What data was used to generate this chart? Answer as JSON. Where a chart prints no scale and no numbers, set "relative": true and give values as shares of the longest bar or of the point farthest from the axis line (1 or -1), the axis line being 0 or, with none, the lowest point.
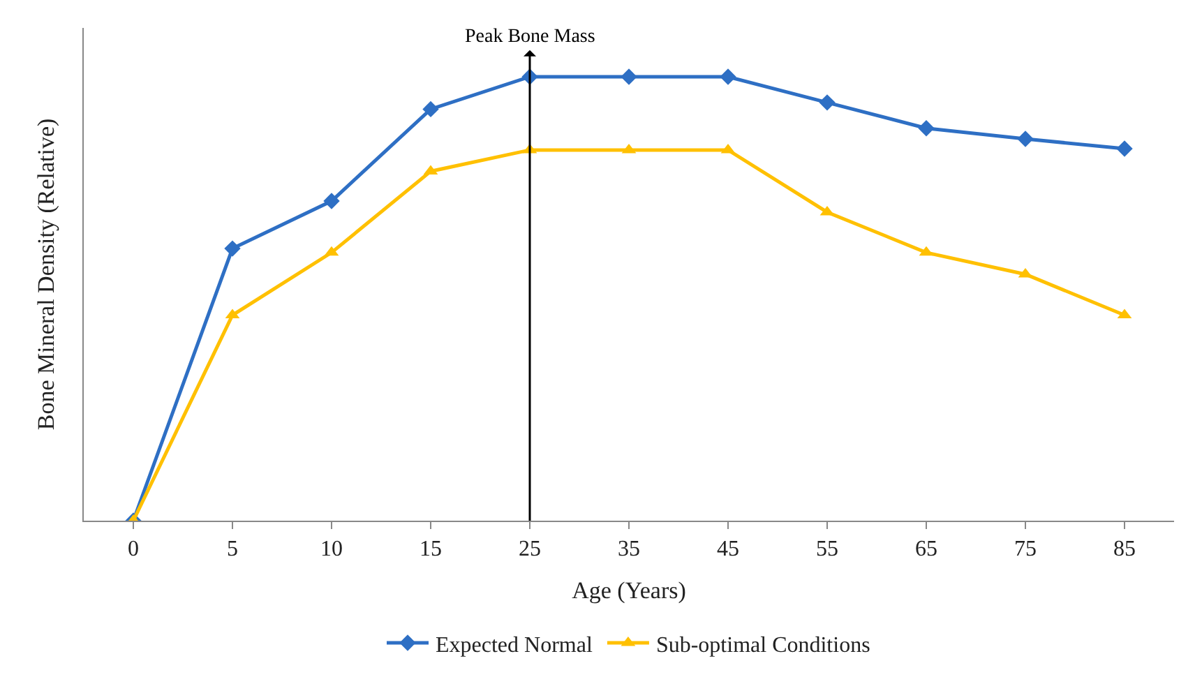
{
  "chart_data": {
    "type": "line",
    "relative": true,
    "xlabel": "Age (Years)",
    "ylabel": "Bone Mineral Density (Relative)",
    "categories": [
      "0",
      "5",
      "10",
      "15",
      "25",
      "35",
      "45",
      "55",
      "65",
      "75",
      "85"
    ],
    "series": [
      {
        "name": "Expected Normal",
        "color": "#2e6fc4",
        "marker": "diamond",
        "values": [
          0,
          0.613,
          0.72,
          0.927,
          1,
          1,
          1,
          0.942,
          0.884,
          0.86,
          0.838
        ]
      },
      {
        "name": "Sub-optimal Conditions",
        "color": "#ffc000",
        "marker": "triangle",
        "values": [
          0,
          0.463,
          0.604,
          0.787,
          0.835,
          0.835,
          0.835,
          0.695,
          0.604,
          0.555,
          0.463
        ]
      }
    ],
    "ref_lines": [
      {
        "axis": "x",
        "value": "25",
        "label": "Peak Bone Mass",
        "color": "#000000"
      }
    ],
    "legend": "bottom"
  }
}
